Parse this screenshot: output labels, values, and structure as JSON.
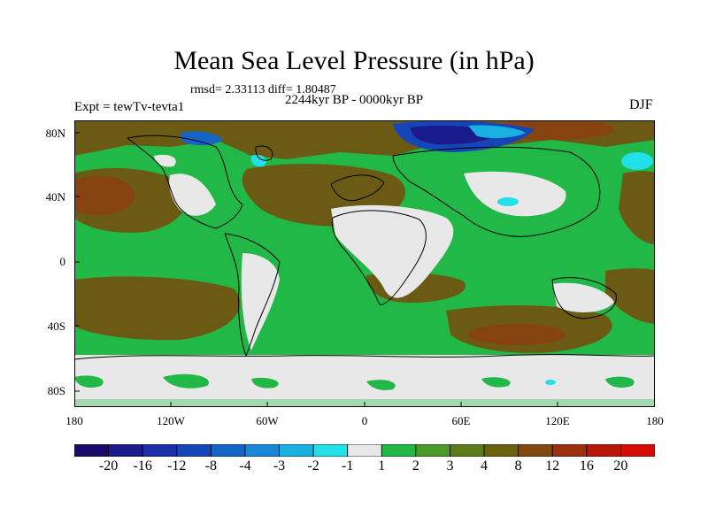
{
  "figure": {
    "title": "Mean Sea Level Pressure (in hPa)",
    "stats": "rmsd= 2.33113 diff= 1.80487",
    "period": "2244kyr BP - 0000kyr BP",
    "experiment": "Expt = tewTv-tevta1",
    "season": "DJF"
  },
  "axes": {
    "lat_labels": [
      "80N",
      "40N",
      "0",
      "40S",
      "80S"
    ],
    "lon_labels": [
      "180",
      "120W",
      "60W",
      "0",
      "60E",
      "120E",
      "180"
    ]
  },
  "colorbar": {
    "labels": [
      "-20",
      "-16",
      "-12",
      "-8",
      "-4",
      "-3",
      "-2",
      "-1",
      "1",
      "2",
      "3",
      "4",
      "8",
      "12",
      "16",
      "20"
    ],
    "colors": [
      "#1b0a6b",
      "#1a1a8c",
      "#1c2fa8",
      "#1546b8",
      "#1565c8",
      "#1a86d8",
      "#19b2e0",
      "#22e0e8",
      "#e8e8e8",
      "#22b848",
      "#4a9a28",
      "#5c7a18",
      "#6a6010",
      "#7e4a10",
      "#9c3010",
      "#b81808",
      "#d40c04"
    ]
  }
}
